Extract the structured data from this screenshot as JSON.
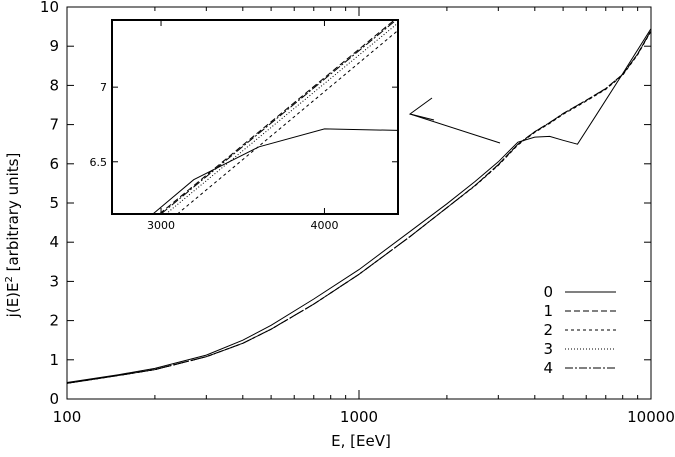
{
  "chart_data": [
    {
      "type": "line",
      "title": "",
      "xlabel": "E, [EeV]",
      "ylabel_main": "j(E)E",
      "ylabel_sup": "2",
      "ylabel_rest": " [arbitrary units]",
      "xscale": "log",
      "xlim": [
        100,
        10000
      ],
      "ylim": [
        0,
        10
      ],
      "xticks": [
        100,
        1000,
        10000
      ],
      "xtick_labels": [
        "100",
        "1000",
        "10000"
      ],
      "yticks": [
        0,
        1,
        2,
        3,
        4,
        5,
        6,
        7,
        8,
        9,
        10
      ],
      "ytick_labels": [
        "0",
        "1",
        "2",
        "3",
        "4",
        "5",
        "6",
        "7",
        "8",
        "9",
        "10"
      ],
      "grid": false,
      "legend_position": "bottom-right",
      "series": [
        {
          "name": "0",
          "dash": "solid",
          "x": [
            100,
            150,
            200,
            300,
            400,
            500,
            700,
            1000,
            1500,
            2000,
            2500,
            3000,
            3500,
            4000,
            4500,
            5000,
            5600,
            6500,
            8000,
            10000
          ],
          "y": [
            0.42,
            0.62,
            0.78,
            1.12,
            1.5,
            1.88,
            2.55,
            3.3,
            4.28,
            4.98,
            5.55,
            6.05,
            6.55,
            6.68,
            6.7,
            6.6,
            6.5,
            7.25,
            8.3,
            9.45
          ]
        },
        {
          "name": "1",
          "dash": "6,3",
          "x": [
            100,
            150,
            200,
            300,
            400,
            500,
            700,
            1000,
            1500,
            2000,
            2500,
            3000,
            3500,
            4000,
            4500,
            5000,
            6000,
            7000,
            8000,
            9000,
            10000
          ],
          "y": [
            0.4,
            0.6,
            0.75,
            1.08,
            1.42,
            1.78,
            2.42,
            3.18,
            4.15,
            4.88,
            5.45,
            5.98,
            6.5,
            6.82,
            7.05,
            7.28,
            7.62,
            7.92,
            8.28,
            8.8,
            9.4
          ]
        },
        {
          "name": "2",
          "dash": "3,3",
          "x": [
            100,
            150,
            200,
            300,
            400,
            500,
            700,
            1000,
            1500,
            2000,
            2500,
            3000,
            3500,
            4000,
            4500,
            5000,
            6000,
            7000,
            8000,
            9000,
            10000
          ],
          "y": [
            0.4,
            0.6,
            0.75,
            1.08,
            1.42,
            1.78,
            2.42,
            3.18,
            4.15,
            4.88,
            5.44,
            5.96,
            6.48,
            6.8,
            7.03,
            7.26,
            7.6,
            7.9,
            8.26,
            8.78,
            9.38
          ]
        },
        {
          "name": "3",
          "dash": "1,2",
          "x": [
            100,
            150,
            200,
            300,
            400,
            500,
            700,
            1000,
            1500,
            2000,
            2500,
            3000,
            3500,
            4000,
            4500,
            5000,
            6000,
            7000,
            8000,
            9000,
            10000
          ],
          "y": [
            0.4,
            0.6,
            0.75,
            1.08,
            1.42,
            1.78,
            2.42,
            3.18,
            4.15,
            4.88,
            5.45,
            5.97,
            6.49,
            6.81,
            7.04,
            7.27,
            7.61,
            7.91,
            8.27,
            8.79,
            9.39
          ]
        },
        {
          "name": "4",
          "dash": "8,2,2,2",
          "x": [
            100,
            150,
            200,
            300,
            400,
            500,
            700,
            1000,
            1500,
            2000,
            2500,
            3000,
            3500,
            4000,
            4500,
            5000,
            6000,
            7000,
            8000,
            9000,
            10000
          ],
          "y": [
            0.4,
            0.6,
            0.75,
            1.08,
            1.42,
            1.78,
            2.42,
            3.18,
            4.15,
            4.88,
            5.45,
            5.98,
            6.5,
            6.82,
            7.05,
            7.28,
            7.62,
            7.92,
            8.28,
            8.8,
            9.4
          ]
        }
      ]
    },
    {
      "type": "line",
      "title": "",
      "inset": true,
      "xscale": "linear",
      "xlim": [
        2700,
        4450
      ],
      "ylim": [
        6.15,
        7.45
      ],
      "xticks": [
        3000,
        4000
      ],
      "xtick_labels": [
        "3000",
        "4000"
      ],
      "yticks": [
        6.5,
        7
      ],
      "ytick_labels": [
        "6.5",
        "7"
      ],
      "grid": false,
      "series": [
        {
          "name": "0",
          "dash": "solid",
          "x": [
            2950,
            3200,
            3600,
            4000,
            4450
          ],
          "y": [
            6.15,
            6.38,
            6.6,
            6.72,
            6.71
          ]
        },
        {
          "name": "1",
          "dash": "6,3",
          "x": [
            2990,
            4450
          ],
          "y": [
            6.15,
            7.47
          ]
        },
        {
          "name": "2",
          "dash": "3,3",
          "x": [
            3100,
            4450
          ],
          "y": [
            6.15,
            7.38
          ]
        },
        {
          "name": "3",
          "dash": "1,2",
          "x": [
            3030,
            4450
          ],
          "y": [
            6.15,
            7.43
          ]
        },
        {
          "name": "4",
          "dash": "8,2,2,2",
          "x": [
            3000,
            4450
          ],
          "y": [
            6.15,
            7.46
          ]
        }
      ]
    }
  ]
}
